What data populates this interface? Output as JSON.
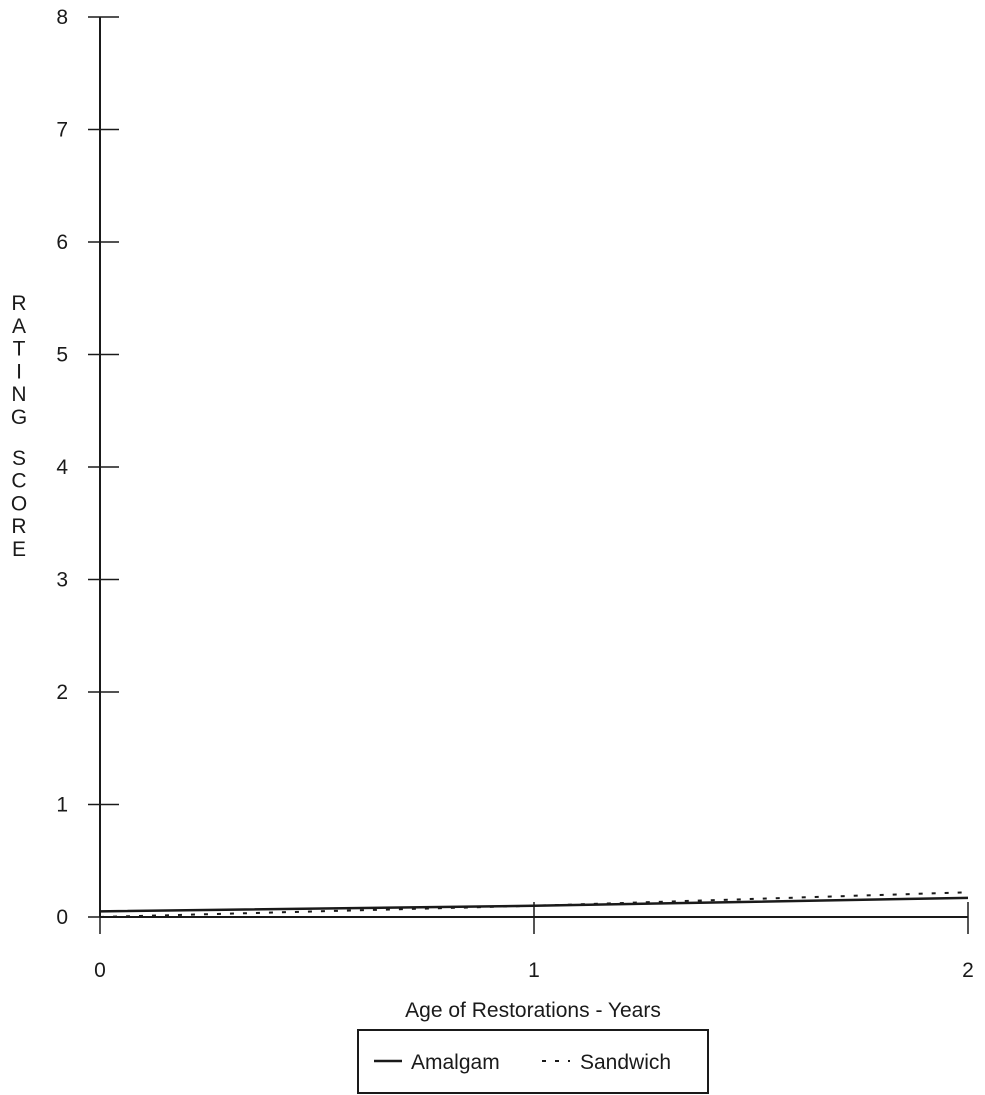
{
  "chart_data": {
    "type": "line",
    "xlabel": "Age of Restorations - Years",
    "ylabel": "RATING SCORE",
    "x": [
      0,
      1,
      2
    ],
    "xticks": [
      0,
      1,
      2
    ],
    "yticks": [
      0,
      1,
      2,
      3,
      4,
      5,
      6,
      7,
      8
    ],
    "xlim": [
      0,
      2
    ],
    "ylim": [
      0,
      8
    ],
    "grid": false,
    "legend_position": "bottom-center",
    "series": [
      {
        "name": "Amalgam",
        "style": "solid",
        "values": [
          0.05,
          0.1,
          0.17
        ]
      },
      {
        "name": "Sandwich",
        "style": "dashed",
        "values": [
          0.0,
          0.1,
          0.22
        ]
      }
    ]
  }
}
